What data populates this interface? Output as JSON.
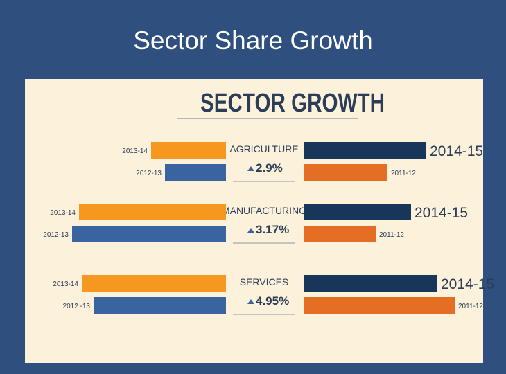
{
  "slide_title": "Sector Share Growth",
  "colors": {
    "background": "#2f4f7e",
    "panel": "#fcf1da",
    "title_text": "#2b3d57",
    "orange_light": "#f6981f",
    "blue_mid": "#3a64a0",
    "navy": "#173659",
    "orange_dark": "#e36e24",
    "label_text": "#2b3d57"
  },
  "chart_data": {
    "type": "bar",
    "title": "SECTOR GROWTH",
    "sectors": [
      {
        "name": "AGRICULTURE",
        "growth": "2.9%",
        "left_bars": [
          {
            "label": "2013-14",
            "value": 108,
            "color": "orange_light"
          },
          {
            "label": "2012-13",
            "value": 88,
            "color": "blue_mid"
          }
        ],
        "right_bars": [
          {
            "label": "2014-15",
            "value": 176,
            "color": "navy"
          },
          {
            "label": "2011-12",
            "value": 120,
            "color": "orange_dark"
          }
        ]
      },
      {
        "name": "MANUFACTURING",
        "growth": "3.17%",
        "left_bars": [
          {
            "label": "2013-14",
            "value": 212,
            "color": "orange_light"
          },
          {
            "label": "2012-13",
            "value": 222,
            "color": "blue_mid"
          }
        ],
        "right_bars": [
          {
            "label": "2014-15",
            "value": 154,
            "color": "navy"
          },
          {
            "label": "2011-12",
            "value": 103,
            "color": "orange_dark"
          }
        ]
      },
      {
        "name": "SERVICES",
        "growth": "4.95%",
        "left_bars": [
          {
            "label": "2013-14",
            "value": 208,
            "color": "orange_light"
          },
          {
            "label": "2012 -13",
            "value": 191,
            "color": "blue_mid"
          }
        ],
        "right_bars": [
          {
            "label": "2014-15",
            "value": 192,
            "color": "navy"
          },
          {
            "label": "2011-12",
            "value": 217,
            "color": "orange_dark"
          }
        ]
      }
    ]
  }
}
